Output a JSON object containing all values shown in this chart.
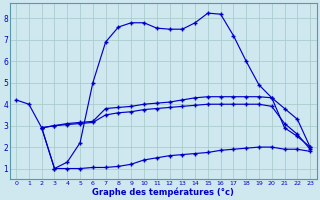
{
  "x_ticks": [
    0,
    1,
    2,
    3,
    4,
    5,
    6,
    7,
    8,
    9,
    10,
    11,
    12,
    13,
    14,
    15,
    16,
    17,
    18,
    19,
    20,
    21,
    22,
    23
  ],
  "ylim": [
    0.5,
    8.7
  ],
  "xlim": [
    -0.5,
    23.5
  ],
  "yticks": [
    1,
    2,
    3,
    4,
    5,
    6,
    7,
    8
  ],
  "xlabel": "Graphe des températures (°c)",
  "bg_color": "#cfe8ef",
  "grid_color": "#aacccc",
  "line_color": "#0000cc",
  "line1_x": [
    0,
    1,
    2,
    3,
    4,
    5,
    6,
    7,
    8,
    9,
    10,
    11,
    12,
    13,
    14,
    15,
    16,
    17,
    18,
    19,
    20,
    21,
    22,
    23
  ],
  "line1_y": [
    4.2,
    4.0,
    2.9,
    1.0,
    1.3,
    2.2,
    5.0,
    6.9,
    7.6,
    7.8,
    7.8,
    7.55,
    7.5,
    7.5,
    7.8,
    8.25,
    8.2,
    7.2,
    6.0,
    4.9,
    4.3,
    2.9,
    2.5,
    2.0
  ],
  "line2_x": [
    2,
    3,
    4,
    5,
    6,
    7,
    8,
    9,
    10,
    11,
    12,
    13,
    14,
    15,
    16,
    17,
    18,
    19,
    20,
    21,
    22,
    23
  ],
  "line2_y": [
    2.9,
    3.0,
    3.1,
    3.15,
    3.2,
    3.8,
    3.85,
    3.9,
    4.0,
    4.05,
    4.1,
    4.2,
    4.3,
    4.35,
    4.35,
    4.35,
    4.35,
    4.35,
    4.3,
    3.8,
    3.3,
    2.0
  ],
  "line3_x": [
    2,
    3,
    4,
    5,
    6,
    7,
    8,
    9,
    10,
    11,
    12,
    13,
    14,
    15,
    16,
    17,
    18,
    19,
    20,
    21,
    22,
    23
  ],
  "line3_y": [
    2.9,
    3.0,
    3.05,
    3.1,
    3.15,
    3.5,
    3.6,
    3.65,
    3.75,
    3.8,
    3.85,
    3.9,
    3.95,
    4.0,
    4.0,
    4.0,
    4.0,
    4.0,
    3.9,
    3.1,
    2.6,
    1.9
  ],
  "line4_x": [
    2,
    3,
    4,
    5,
    6,
    7,
    8,
    9,
    10,
    11,
    12,
    13,
    14,
    15,
    16,
    17,
    18,
    19,
    20,
    21,
    22,
    23
  ],
  "line4_y": [
    2.9,
    1.0,
    1.0,
    1.0,
    1.05,
    1.05,
    1.1,
    1.2,
    1.4,
    1.5,
    1.6,
    1.65,
    1.7,
    1.75,
    1.85,
    1.9,
    1.95,
    2.0,
    2.0,
    1.9,
    1.9,
    1.8
  ],
  "marker_x1": [
    0,
    1,
    10,
    11,
    12,
    13,
    14,
    15,
    16,
    17,
    19,
    20,
    21,
    22,
    23
  ],
  "marker_x234": [
    7,
    8,
    9,
    10,
    11,
    12,
    13,
    14,
    15,
    16,
    19,
    20,
    21,
    22,
    23
  ]
}
